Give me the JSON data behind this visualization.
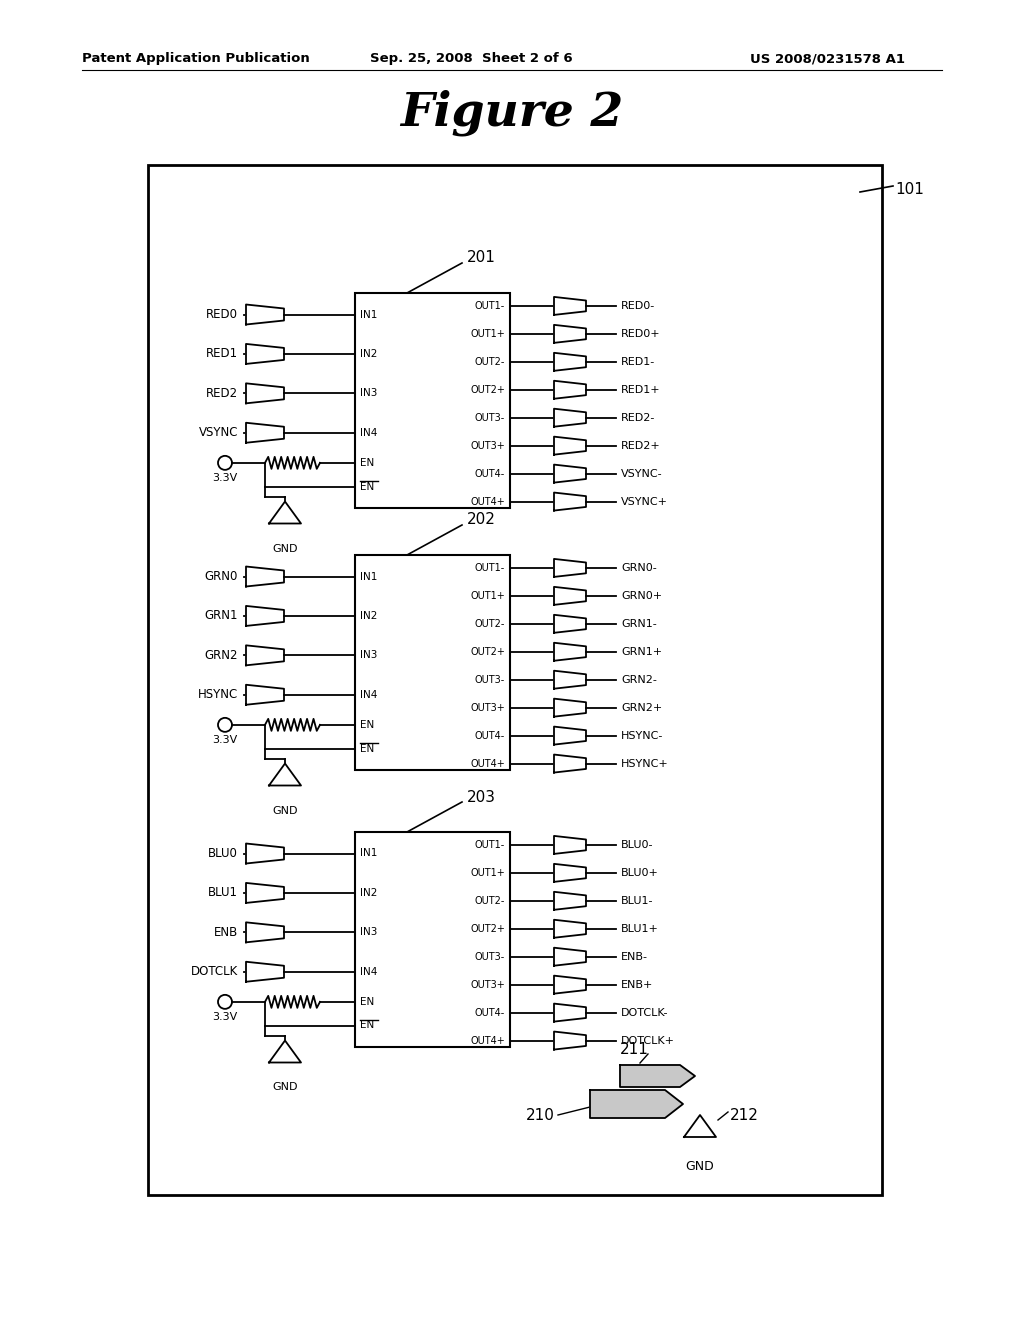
{
  "title": "Figure 2",
  "header_left": "Patent Application Publication",
  "header_mid": "Sep. 25, 2008  Sheet 2 of 6",
  "header_right": "US 2008/0231578 A1",
  "outer_box_label": "101",
  "blocks": [
    {
      "label": "201",
      "inputs": [
        "RED0",
        "RED1",
        "RED2",
        "VSYNC"
      ],
      "in_pins": [
        "IN1",
        "IN2",
        "IN3",
        "IN4"
      ],
      "out_pins": [
        "OUT1-",
        "OUT1+",
        "OUT2-",
        "OUT2+",
        "OUT3-",
        "OUT3+",
        "OUT4-",
        "OUT4+"
      ],
      "outputs": [
        "RED0-",
        "RED0+",
        "RED1-",
        "RED1+",
        "RED2-",
        "RED2+",
        "VSYNC-",
        "VSYNC+"
      ],
      "voltage": "3.3V"
    },
    {
      "label": "202",
      "inputs": [
        "GRN0",
        "GRN1",
        "GRN2",
        "HSYNC"
      ],
      "in_pins": [
        "IN1",
        "IN2",
        "IN3",
        "IN4"
      ],
      "out_pins": [
        "OUT1-",
        "OUT1+",
        "OUT2-",
        "OUT2+",
        "OUT3-",
        "OUT3+",
        "OUT4-",
        "OUT4+"
      ],
      "outputs": [
        "GRN0-",
        "GRN0+",
        "GRN1-",
        "GRN1+",
        "GRN2-",
        "GRN2+",
        "HSYNC-",
        "HSYNC+"
      ],
      "voltage": "3.3V"
    },
    {
      "label": "203",
      "inputs": [
        "BLU0",
        "BLU1",
        "ENB",
        "DOTCLK"
      ],
      "in_pins": [
        "IN1",
        "IN2",
        "IN3",
        "IN4"
      ],
      "out_pins": [
        "OUT1-",
        "OUT1+",
        "OUT2-",
        "OUT2+",
        "OUT3-",
        "OUT3+",
        "OUT4-",
        "OUT4+"
      ],
      "outputs": [
        "BLU0-",
        "BLU0+",
        "BLU1-",
        "BLU1+",
        "ENB-",
        "ENB+",
        "DOTCLK-",
        "DOTCLK+"
      ],
      "voltage": "3.3V"
    }
  ],
  "bottom": {
    "label_210": "210",
    "label_211": "211",
    "label_212": "212",
    "label_gnd": "GND"
  }
}
